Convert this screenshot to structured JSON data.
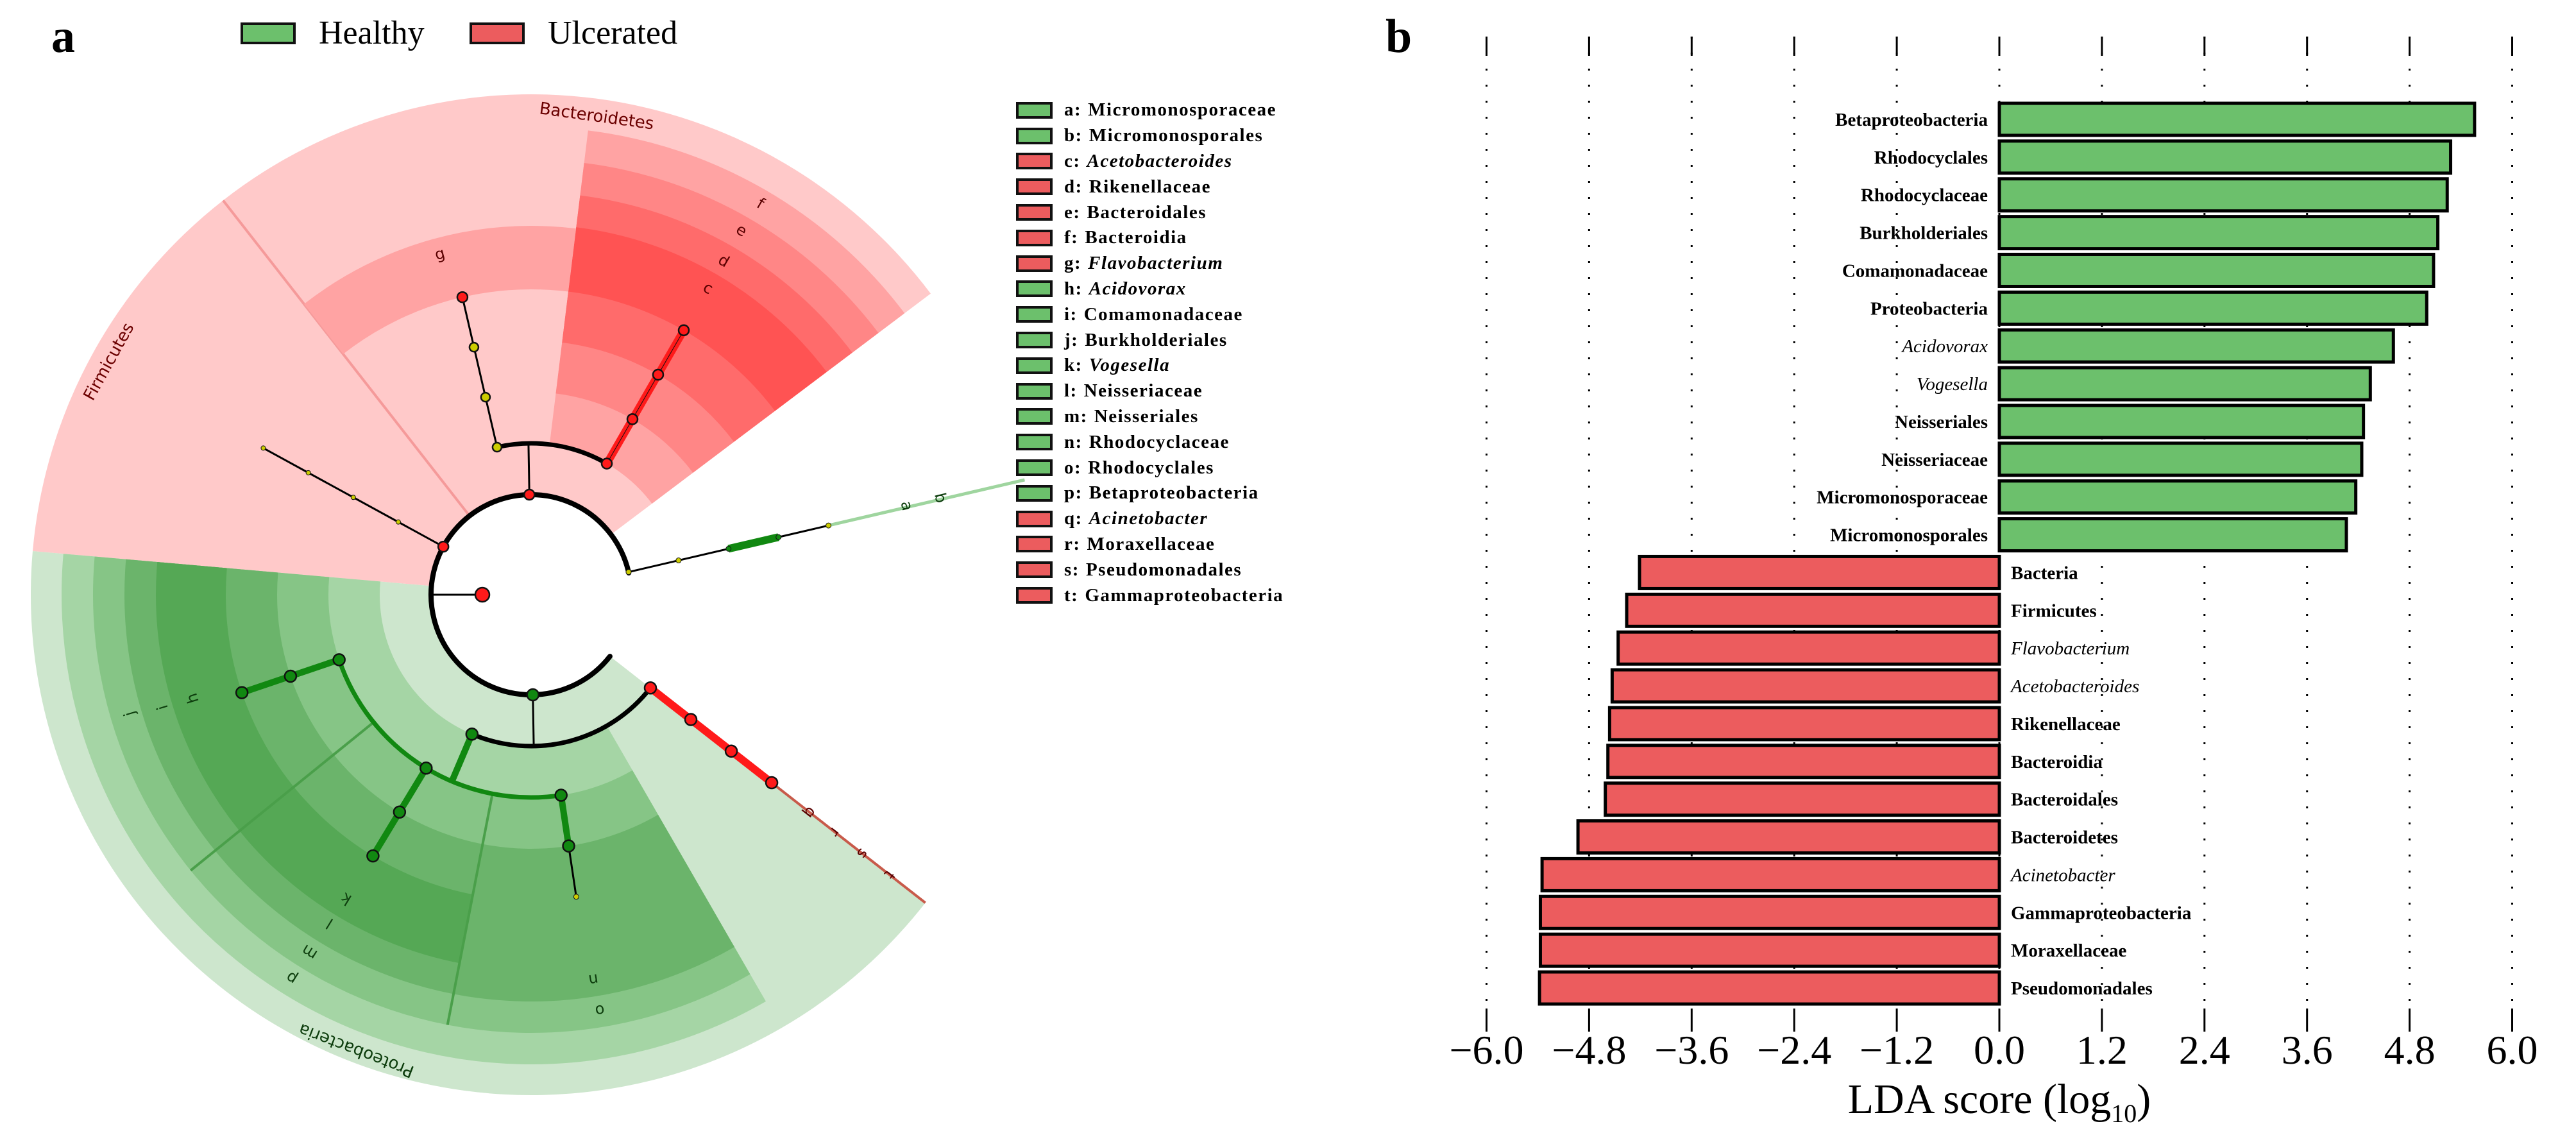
{
  "panels": {
    "a": "a",
    "b": "b"
  },
  "legend": {
    "healthy": {
      "label": "Healthy",
      "color": "#6cc06c"
    },
    "ulcerated": {
      "label": "Ulcerated",
      "color": "#ec5c5e"
    }
  },
  "cladogram": {
    "phyla": {
      "firmicutes": "Firmicutes",
      "bacteroidetes": "Bacteroidetes",
      "proteobacteria": "Proteobacteria"
    },
    "taxa": [
      {
        "key": "a",
        "name": "Micromonosporaceae",
        "group": "healthy",
        "italic": false
      },
      {
        "key": "b",
        "name": "Micromonosporales",
        "group": "healthy",
        "italic": false
      },
      {
        "key": "c",
        "name": "Acetobacteroides",
        "group": "ulcerated",
        "italic": true
      },
      {
        "key": "d",
        "name": "Rikenellaceae",
        "group": "ulcerated",
        "italic": false
      },
      {
        "key": "e",
        "name": "Bacteroidales",
        "group": "ulcerated",
        "italic": false
      },
      {
        "key": "f",
        "name": "Bacteroidia",
        "group": "ulcerated",
        "italic": false
      },
      {
        "key": "g",
        "name": "Flavobacterium",
        "group": "ulcerated",
        "italic": true
      },
      {
        "key": "h",
        "name": "Acidovorax",
        "group": "healthy",
        "italic": true
      },
      {
        "key": "i",
        "name": "Comamonadaceae",
        "group": "healthy",
        "italic": false
      },
      {
        "key": "j",
        "name": "Burkholderiales",
        "group": "healthy",
        "italic": false
      },
      {
        "key": "k",
        "name": "Vogesella",
        "group": "healthy",
        "italic": true
      },
      {
        "key": "l",
        "name": "Neisseriaceae",
        "group": "healthy",
        "italic": false
      },
      {
        "key": "m",
        "name": "Neisseriales",
        "group": "healthy",
        "italic": false
      },
      {
        "key": "n",
        "name": "Rhodocyclaceae",
        "group": "healthy",
        "italic": false
      },
      {
        "key": "o",
        "name": "Rhodocyclales",
        "group": "healthy",
        "italic": false
      },
      {
        "key": "p",
        "name": "Betaproteobacteria",
        "group": "healthy",
        "italic": false
      },
      {
        "key": "q",
        "name": "Acinetobacter",
        "group": "ulcerated",
        "italic": true
      },
      {
        "key": "r",
        "name": "Moraxellaceae",
        "group": "ulcerated",
        "italic": false
      },
      {
        "key": "s",
        "name": "Pseudomonadales",
        "group": "ulcerated",
        "italic": false
      },
      {
        "key": "t",
        "name": "Gammaproteobacteria",
        "group": "ulcerated",
        "italic": false
      }
    ]
  },
  "chart_data": {
    "type": "bar",
    "orientation": "horizontal",
    "title": "",
    "xlabel": "LDA score (log10)",
    "xlabel_parts": {
      "main": "LDA score (log",
      "sub": "10",
      "end": ")"
    },
    "ylabel": "",
    "xlim": [
      -6.0,
      6.0
    ],
    "xticks": [
      "−6.0",
      "−4.8",
      "−3.6",
      "−2.4",
      "−1.2",
      "0.0",
      "1.2",
      "2.4",
      "3.6",
      "4.8",
      "6.0"
    ],
    "xtick_values": [
      -6.0,
      -4.8,
      -3.6,
      -2.4,
      -1.2,
      0.0,
      1.2,
      2.4,
      3.6,
      4.8,
      6.0
    ],
    "grid": "vertical dotted",
    "categories": [
      "Betaproteobacteria",
      "Rhodocyclales",
      "Rhodocyclaceae",
      "Burkholderiales",
      "Comamonadaceae",
      "Proteobacteria",
      "Acidovorax",
      "Vogesella",
      "Neisseriales",
      "Neisseriaceae",
      "Micromonosporaceae",
      "Micromonosporales",
      "Bacteria",
      "Firmicutes",
      "Flavobacterium",
      "Acetobacteroides",
      "Rikenellaceae",
      "Bacteroidia",
      "Bacteroidales",
      "Bacteroidetes",
      "Acinetobacter",
      "Gammaproteobacteria",
      "Moraxellaceae",
      "Pseudomonadales"
    ],
    "italic": [
      false,
      false,
      false,
      false,
      false,
      false,
      true,
      true,
      false,
      false,
      false,
      false,
      false,
      false,
      true,
      true,
      false,
      false,
      false,
      false,
      true,
      false,
      false,
      false
    ],
    "values": [
      5.56,
      5.28,
      5.24,
      5.13,
      5.08,
      5.0,
      4.61,
      4.34,
      4.26,
      4.24,
      4.17,
      4.06,
      -4.21,
      -4.36,
      -4.46,
      -4.53,
      -4.56,
      -4.58,
      -4.61,
      -4.93,
      -5.35,
      -5.37,
      -5.37,
      -5.38
    ],
    "series": [
      {
        "name": "Healthy",
        "color": "#6cc06c"
      },
      {
        "name": "Ulcerated",
        "color": "#ec5c5e"
      }
    ]
  }
}
